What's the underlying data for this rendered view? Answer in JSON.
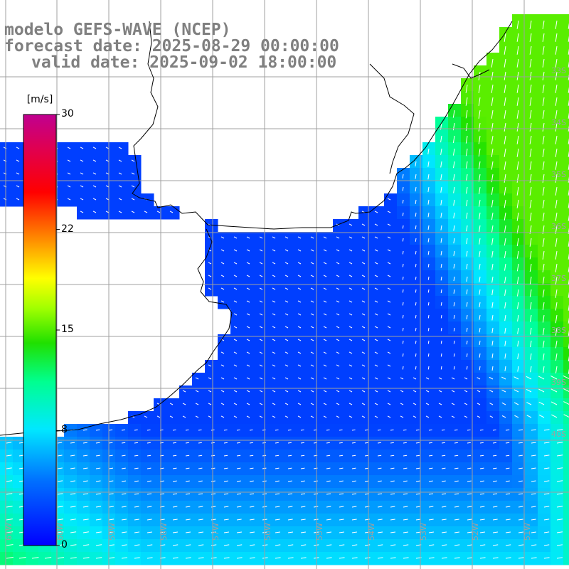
{
  "title": {
    "model": "modelo GEFS-WAVE (NCEP)",
    "forecast": "forecast date: 2025-08-29 00:00:00",
    "valid": "valid date: 2025-09-02 18:00:00"
  },
  "colorbar": {
    "units": "[m/s]",
    "min": 0,
    "max": 30,
    "tick_labels": [
      "30",
      "22",
      "15",
      "8",
      "0"
    ],
    "tick_values": [
      30,
      22,
      15,
      8,
      0
    ]
  },
  "lat_labels": [
    "33S",
    "34S",
    "35S",
    "36S",
    "37S",
    "38S",
    "39S",
    "40S"
  ],
  "lon_labels": [
    "61W",
    "60W",
    "59W",
    "58W",
    "57W",
    "56W",
    "55W",
    "54W",
    "53W",
    "52W",
    "51W"
  ],
  "colors": {
    "ocean_low": "#0022ff",
    "ocean_mid": "#0060ff",
    "ocean_cyan": "#00e8ff",
    "ocean_high": "#22dd00",
    "grid": "#a0a0a0",
    "coast": "#000000",
    "title": "#808080"
  }
}
